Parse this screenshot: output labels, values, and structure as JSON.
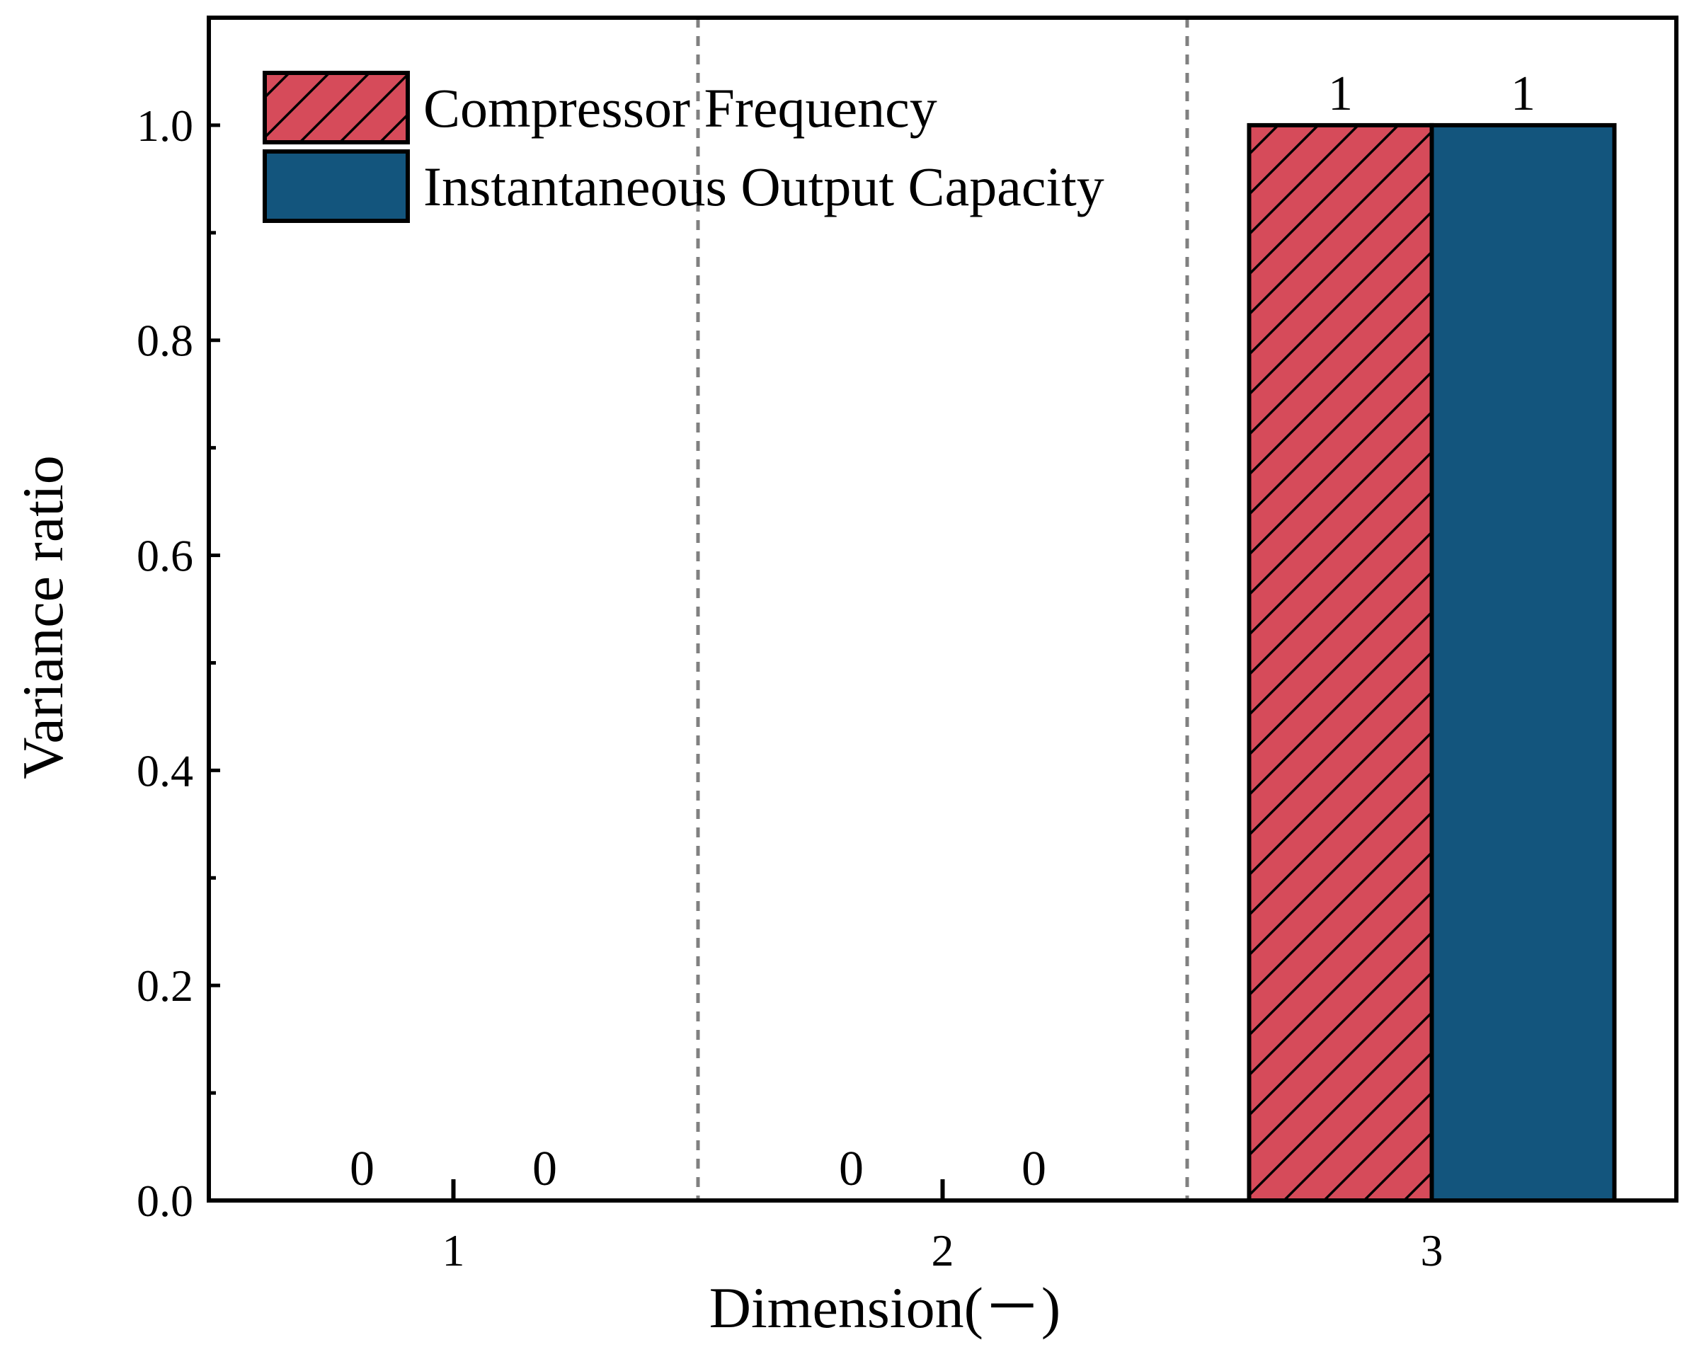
{
  "chart_data": {
    "type": "bar",
    "xlabel": "Dimension(－)",
    "ylabel": "Variance ratio",
    "categories": [
      "1",
      "2",
      "3"
    ],
    "ylim": [
      0,
      1.1
    ],
    "yticks": [
      "0.0",
      "0.2",
      "0.4",
      "0.6",
      "0.8",
      "1.0"
    ],
    "ytick_values": [
      0,
      0.2,
      0.4,
      0.6,
      0.8,
      1.0
    ],
    "grid": "vertical dashed separators between categories",
    "legend_position": "top-left",
    "series": [
      {
        "name": "Compressor Frequency",
        "values": [
          0,
          0,
          1
        ],
        "labels": [
          "0",
          "0",
          "1"
        ],
        "color": "#d64b5a",
        "pattern": "diagonal-hatch"
      },
      {
        "name": "Instantaneous Output Capacity",
        "values": [
          0,
          0,
          1
        ],
        "labels": [
          "0",
          "0",
          "1"
        ],
        "color": "#13557d",
        "pattern": "solid"
      }
    ]
  }
}
